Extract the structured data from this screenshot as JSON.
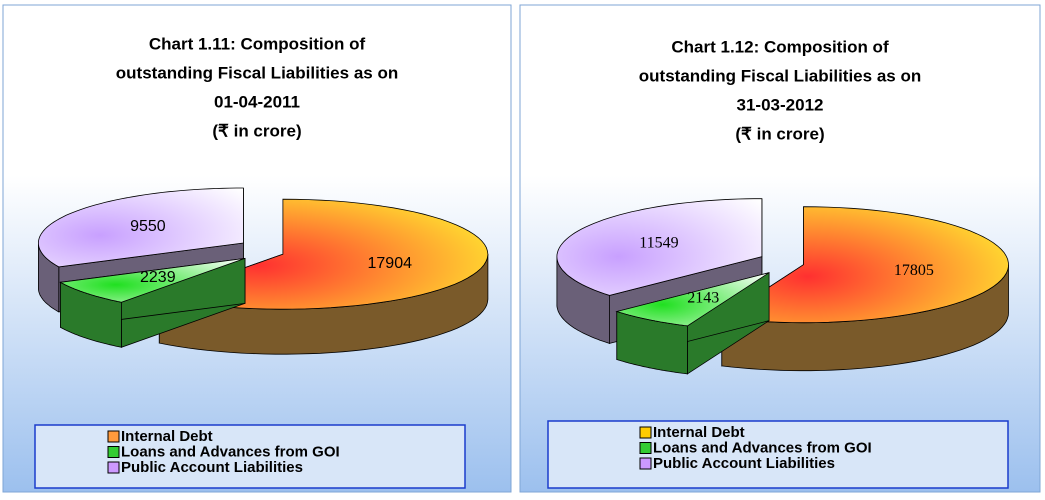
{
  "chart_data": [
    {
      "type": "pie3d",
      "title": [
        "Chart 1.11: Composition of",
        "outstanding Fiscal Liabilities as on",
        "01-04-2011"
      ],
      "subtitle": "(₹ in crore)",
      "categories": [
        "Internal Debt",
        "Loans and Advances from GOI",
        "Public Account Liabilities"
      ],
      "values": [
        17904,
        2239,
        9550
      ],
      "colors": [
        "#ff9a3c",
        "#33cc33",
        "#cc99ff"
      ]
    },
    {
      "type": "pie3d",
      "title": [
        "Chart 1.12: Composition of",
        "outstanding Fiscal Liabilities as on",
        "31-03-2012"
      ],
      "subtitle": "(₹ in crore)",
      "categories": [
        "Internal Debt",
        "Loans and Advances from GOI",
        "Public Account Liabilities"
      ],
      "values": [
        17805,
        2143,
        11549
      ],
      "colors": [
        "#ffcc00",
        "#33cc33",
        "#cc99ff"
      ]
    }
  ]
}
